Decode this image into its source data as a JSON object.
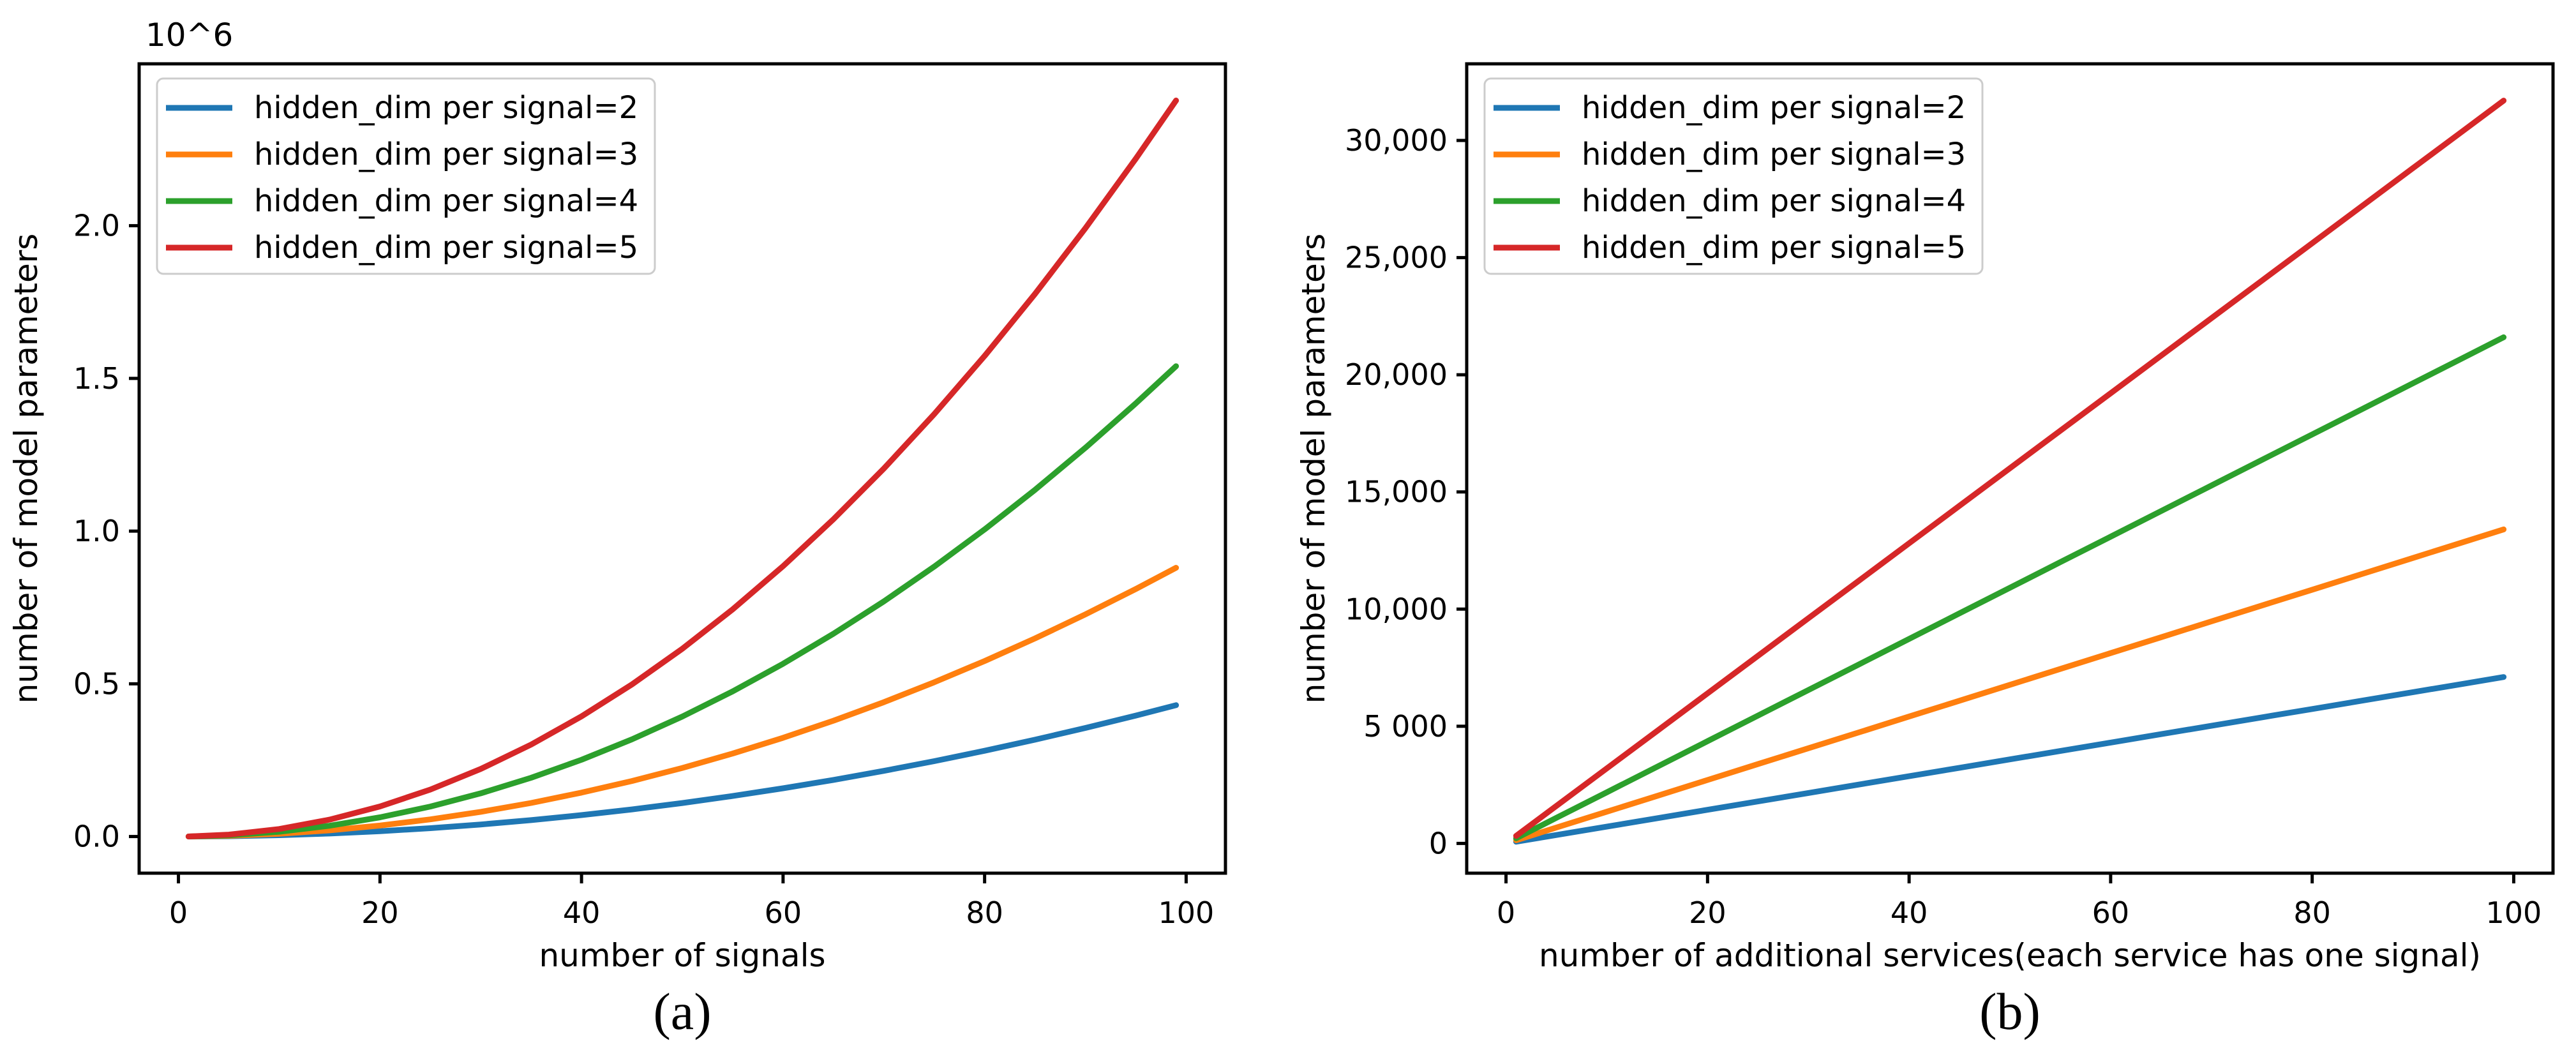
{
  "figure": {
    "background": "#ffffff",
    "text_color": "#000000",
    "captions": {
      "a": "(a)",
      "b": "(b)"
    }
  },
  "chart_data": [
    {
      "id": "a",
      "type": "line",
      "title": "",
      "xlabel": "number of signals",
      "ylabel": "number of model parameters",
      "offset_text": "10^6",
      "grid": false,
      "legend_position": "upper left",
      "xlim": [
        -3.9,
        103.9
      ],
      "ylim": [
        -120000,
        2530000
      ],
      "xticks": [
        0,
        20,
        40,
        60,
        80,
        100
      ],
      "xtick_labels": [
        "0",
        "20",
        "40",
        "60",
        "80",
        "100"
      ],
      "yticks": [
        0,
        500000,
        1000000,
        1500000,
        2000000
      ],
      "ytick_labels": [
        "0.0",
        "0.5",
        "1.0",
        "1.5",
        "2.0"
      ],
      "x": [
        1,
        5,
        10,
        15,
        20,
        25,
        30,
        35,
        40,
        45,
        50,
        55,
        60,
        65,
        70,
        75,
        80,
        85,
        90,
        95,
        99
      ],
      "series": [
        {
          "name": "hidden_dim per signal=2",
          "color": "#1f77b4",
          "values": [
            44,
            1097,
            4387,
            9871,
            17549,
            27421,
            39486,
            53745,
            70197,
            88843,
            109683,
            132716,
            157943,
            185364,
            214978,
            246786,
            280787,
            316983,
            355371,
            395954,
            430000
          ]
        },
        {
          "name": "hidden_dim per signal=3",
          "color": "#ff7f0e",
          "values": [
            90,
            2245,
            8979,
            20202,
            35915,
            56117,
            80808,
            109989,
            143659,
            181819,
            224468,
            271606,
            323233,
            379350,
            439957,
            505052,
            574637,
            648711,
            727275,
            810328,
            880000
          ]
        },
        {
          "name": "hidden_dim per signal=4",
          "color": "#2ca02c",
          "values": [
            157,
            3928,
            15713,
            35354,
            62851,
            98204,
            141414,
            192481,
            251403,
            318182,
            392818,
            475309,
            565657,
            663861,
            769922,
            883839,
            1005613,
            1135243,
            1272729,
            1418071,
            1540000
          ]
        },
        {
          "name": "hidden_dim per signal=5",
          "color": "#d62728",
          "values": [
            246,
            6147,
            24589,
            55326,
            98358,
            153684,
            221305,
            301220,
            393430,
            497935,
            614735,
            743829,
            885218,
            1038901,
            1204880,
            1383152,
            1573721,
            1776583,
            1991740,
            2219191,
            2410000
          ]
        }
      ]
    },
    {
      "id": "b",
      "type": "line",
      "title": "",
      "xlabel": "number of additional services(each service has one signal)",
      "ylabel": "number of model parameters",
      "offset_text": "",
      "grid": false,
      "legend_position": "upper left",
      "xlim": [
        -3.9,
        103.9
      ],
      "ylim": [
        -1270,
        33270
      ],
      "xticks": [
        0,
        20,
        40,
        60,
        80,
        100
      ],
      "xtick_labels": [
        "0",
        "20",
        "40",
        "60",
        "80",
        "100"
      ],
      "yticks": [
        0,
        5000,
        10000,
        15000,
        20000,
        25000,
        30000
      ],
      "ytick_labels": [
        "0",
        "5 000",
        "10,000",
        "15,000",
        "20,000",
        "25,000",
        "30,000"
      ],
      "x": [
        1,
        5,
        10,
        15,
        20,
        25,
        30,
        35,
        40,
        45,
        50,
        55,
        60,
        65,
        70,
        75,
        80,
        85,
        90,
        95,
        99
      ],
      "series": [
        {
          "name": "hidden_dim per signal=2",
          "color": "#1f77b4",
          "values": [
            72,
            359,
            717,
            1076,
            1434,
            1793,
            2152,
            2510,
            2869,
            3227,
            3586,
            3944,
            4303,
            4662,
            5020,
            5379,
            5737,
            6096,
            6455,
            6813,
            7100
          ]
        },
        {
          "name": "hidden_dim per signal=3",
          "color": "#ff7f0e",
          "values": [
            135,
            677,
            1354,
            2030,
            2707,
            3384,
            4061,
            4737,
            5414,
            6091,
            6768,
            7444,
            8121,
            8798,
            9475,
            10152,
            10828,
            11505,
            12182,
            12859,
            13400
          ]
        },
        {
          "name": "hidden_dim per signal=4",
          "color": "#2ca02c",
          "values": [
            218,
            1091,
            2182,
            3273,
            4364,
            5455,
            6545,
            7636,
            8727,
            9818,
            10909,
            12000,
            13091,
            14182,
            15273,
            16364,
            17455,
            18545,
            19636,
            20727,
            21600
          ]
        },
        {
          "name": "hidden_dim per signal=5",
          "color": "#d62728",
          "values": [
            320,
            1601,
            3202,
            4803,
            6404,
            8005,
            9606,
            11207,
            12808,
            14409,
            16010,
            17611,
            19212,
            20813,
            22414,
            24015,
            25616,
            27217,
            28818,
            30419,
            31700
          ]
        }
      ]
    }
  ]
}
